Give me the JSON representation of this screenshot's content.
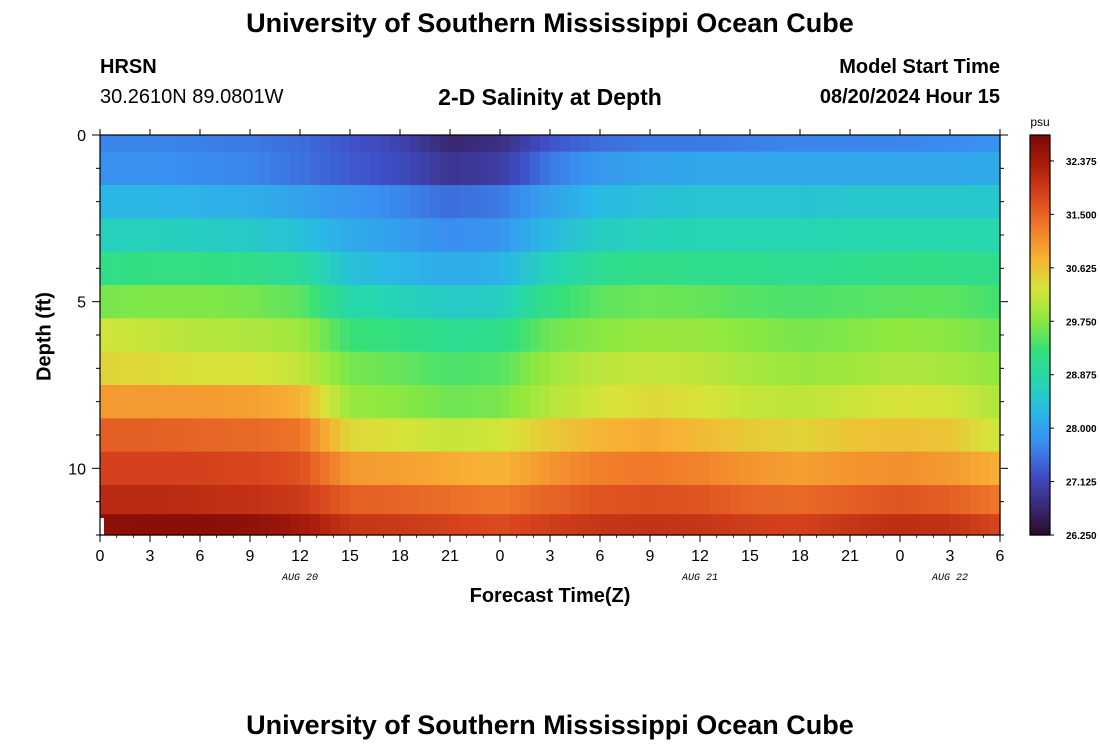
{
  "header": {
    "title": "University of Southern Mississippi Ocean Cube",
    "station": "HRSN",
    "coords": "30.2610N  89.0801W",
    "plot_title": "2-D Salinity at Depth",
    "model_start_label": "Model Start Time",
    "model_start_value": "08/20/2024 Hour 15"
  },
  "footer": {
    "title": "University of Southern Mississippi Ocean Cube"
  },
  "colors": {
    "ramp": [
      "#2a0a2a",
      "#3b2b7a",
      "#3f4fc8",
      "#3a8ef0",
      "#2ab8e6",
      "#26d6b0",
      "#35e07a",
      "#8ee83f",
      "#d6e43a",
      "#f7b234",
      "#f07a2a",
      "#d9461e",
      "#ac1e0c",
      "#7a0808"
    ]
  },
  "chart_data": {
    "type": "heatmap",
    "title": "2-D Salinity at Depth",
    "xlabel": "Forecast Time(Z)",
    "ylabel": "Depth (ft)",
    "x_tick_labels": [
      "0",
      "3",
      "6",
      "9",
      "12",
      "15",
      "18",
      "21",
      "0",
      "3",
      "6",
      "9",
      "12",
      "15",
      "18",
      "21",
      "0",
      "3",
      "6"
    ],
    "date_labels": [
      {
        "label": "AUG 20",
        "at_tick": 4
      },
      {
        "label": "AUG 21",
        "at_tick": 12
      },
      {
        "label": "AUG 22",
        "at_tick": 17
      }
    ],
    "y_ticks": [
      0,
      5,
      10
    ],
    "ylim": [
      0,
      12
    ],
    "xlim_hours": [
      0,
      54
    ],
    "colorbar": {
      "unit": "psu",
      "min": 26.25,
      "max": 32.8,
      "tick_values": [
        26.25,
        27.125,
        28.0,
        28.875,
        29.75,
        30.625,
        31.5,
        32.375
      ],
      "tick_labels": [
        "26.250",
        "27.125",
        "28.000",
        "28.875",
        "29.750",
        "30.625",
        "31.500",
        "32.375"
      ]
    },
    "depth_layers_ft": [
      0.25,
      1.0,
      2.0,
      3.0,
      4.0,
      5.0,
      6.0,
      7.0,
      8.0,
      9.0,
      10.0,
      11.0,
      11.75
    ],
    "time_hours": [
      0,
      3,
      6,
      9,
      12,
      15,
      18,
      21,
      24,
      27,
      30,
      33,
      36,
      39,
      42,
      45,
      48,
      51,
      54
    ],
    "salinity_psu": [
      [
        27.7,
        27.7,
        27.65,
        27.6,
        27.5,
        27.3,
        27.1,
        26.7,
        26.8,
        27.3,
        27.5,
        27.6,
        27.6,
        27.65,
        27.7,
        27.7,
        27.7,
        27.75,
        27.8
      ],
      [
        27.8,
        27.8,
        27.75,
        27.7,
        27.55,
        27.35,
        27.2,
        26.9,
        27.0,
        27.6,
        27.9,
        28.0,
        28.05,
        28.05,
        28.05,
        28.05,
        28.05,
        28.05,
        28.1
      ],
      [
        28.25,
        28.25,
        28.2,
        28.15,
        28.0,
        27.85,
        27.7,
        27.5,
        27.6,
        28.0,
        28.3,
        28.4,
        28.45,
        28.45,
        28.45,
        28.5,
        28.5,
        28.5,
        28.5
      ],
      [
        28.65,
        28.65,
        28.6,
        28.55,
        28.4,
        28.1,
        27.95,
        27.75,
        27.85,
        28.3,
        28.6,
        28.7,
        28.75,
        28.75,
        28.75,
        28.8,
        28.8,
        28.8,
        28.8
      ],
      [
        29.15,
        29.2,
        29.2,
        29.15,
        29.0,
        28.4,
        28.25,
        28.1,
        28.2,
        28.7,
        29.05,
        29.15,
        29.1,
        29.1,
        29.05,
        29.1,
        29.15,
        29.15,
        29.1
      ],
      [
        29.65,
        29.7,
        29.7,
        29.65,
        29.5,
        28.85,
        28.7,
        28.55,
        28.6,
        29.2,
        29.5,
        29.6,
        29.55,
        29.45,
        29.4,
        29.45,
        29.5,
        29.5,
        29.35
      ],
      [
        30.25,
        30.15,
        30.05,
        30.0,
        29.9,
        29.3,
        29.2,
        29.05,
        29.1,
        29.6,
        29.75,
        29.85,
        29.85,
        29.75,
        29.65,
        29.7,
        29.8,
        29.75,
        29.6
      ],
      [
        30.45,
        30.4,
        30.3,
        30.3,
        30.15,
        29.65,
        29.55,
        29.4,
        29.45,
        29.9,
        30.1,
        30.15,
        30.1,
        29.95,
        29.85,
        29.9,
        30.0,
        29.95,
        29.8
      ],
      [
        31.0,
        31.0,
        31.0,
        30.95,
        30.8,
        29.85,
        29.75,
        29.6,
        29.65,
        30.05,
        30.25,
        30.4,
        30.3,
        30.15,
        30.1,
        30.2,
        30.3,
        30.25,
        30.0
      ],
      [
        31.55,
        31.55,
        31.5,
        31.45,
        31.35,
        30.4,
        30.3,
        30.15,
        30.25,
        30.55,
        30.75,
        30.85,
        30.7,
        30.55,
        30.45,
        30.6,
        30.65,
        30.6,
        30.2
      ],
      [
        31.85,
        31.85,
        31.85,
        31.8,
        31.7,
        31.0,
        30.95,
        30.85,
        30.75,
        31.05,
        31.25,
        31.3,
        31.2,
        31.05,
        30.95,
        31.05,
        31.1,
        31.0,
        30.8
      ],
      [
        32.15,
        32.15,
        32.1,
        32.05,
        31.95,
        31.55,
        31.5,
        31.4,
        31.3,
        31.5,
        31.65,
        31.7,
        31.65,
        31.5,
        31.45,
        31.55,
        31.65,
        31.55,
        31.3
      ],
      [
        32.6,
        32.65,
        32.65,
        32.6,
        32.4,
        32.0,
        31.95,
        31.85,
        31.75,
        31.9,
        32.0,
        32.05,
        32.0,
        31.9,
        31.85,
        32.0,
        32.1,
        32.05,
        31.8
      ]
    ]
  }
}
